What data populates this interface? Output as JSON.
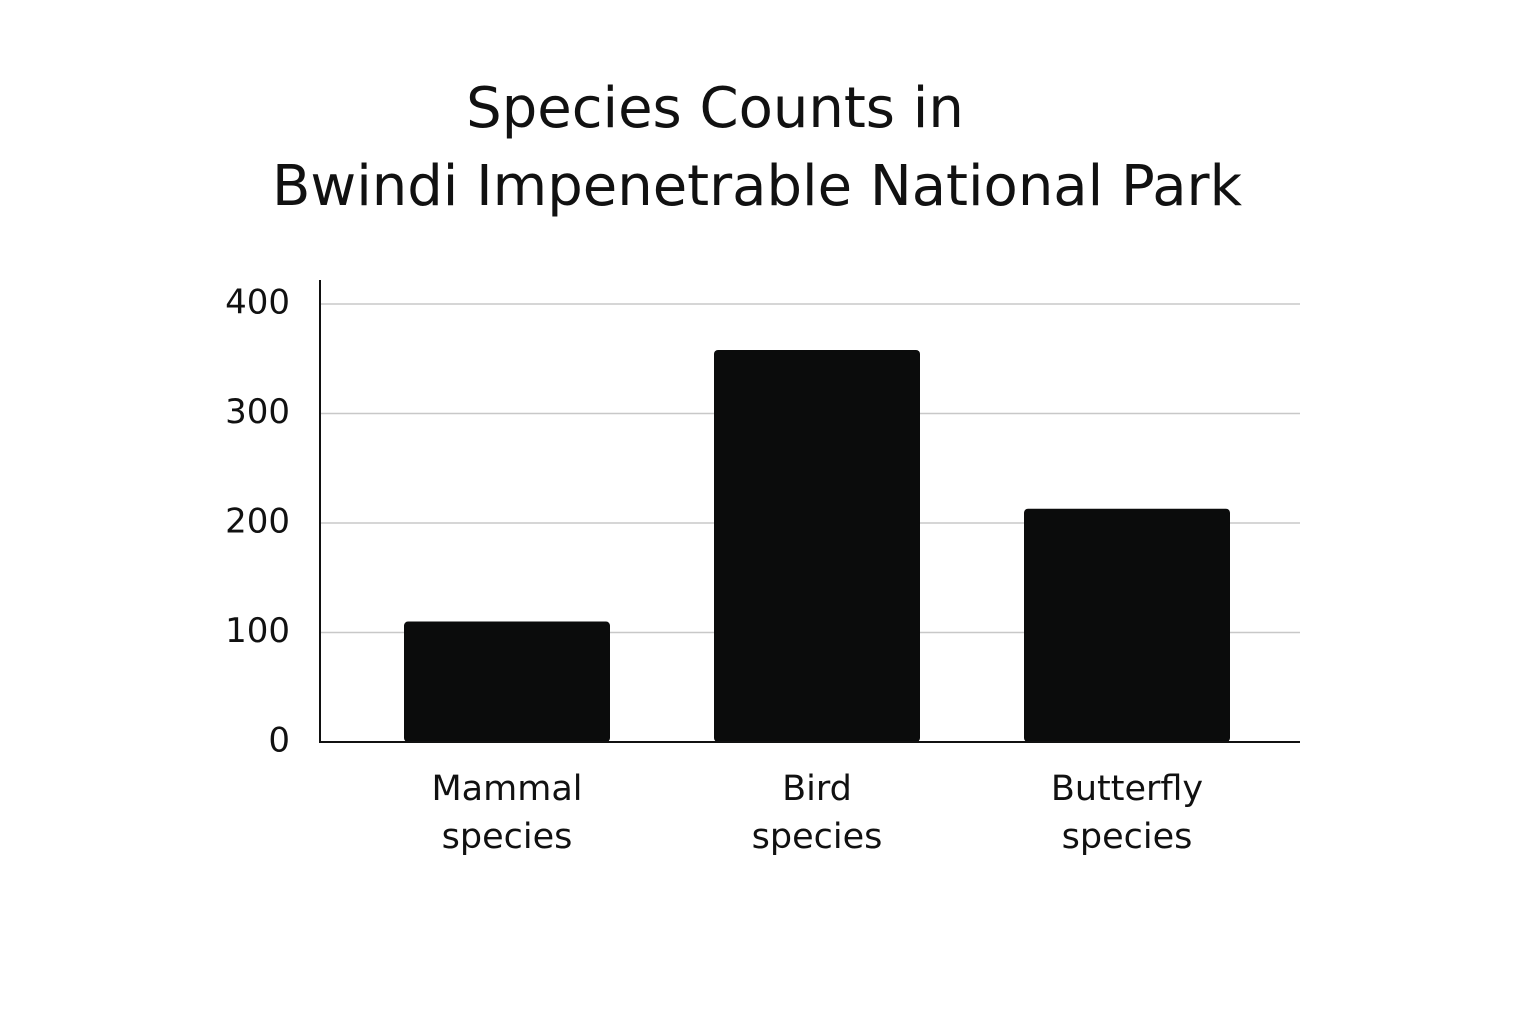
{
  "chart_data": {
    "type": "bar",
    "title": [
      "Species Counts in",
      "Bwindi Impenetrable National Park"
    ],
    "categories": [
      [
        "Mammal",
        "species"
      ],
      [
        "Bird",
        "species"
      ],
      [
        "Butterfly",
        "species"
      ]
    ],
    "values": [
      110,
      358,
      213
    ],
    "color": "#0b0c0c",
    "ylim": [
      0,
      420
    ],
    "yticks": [
      0,
      100,
      200,
      300,
      400
    ],
    "grid": true
  }
}
